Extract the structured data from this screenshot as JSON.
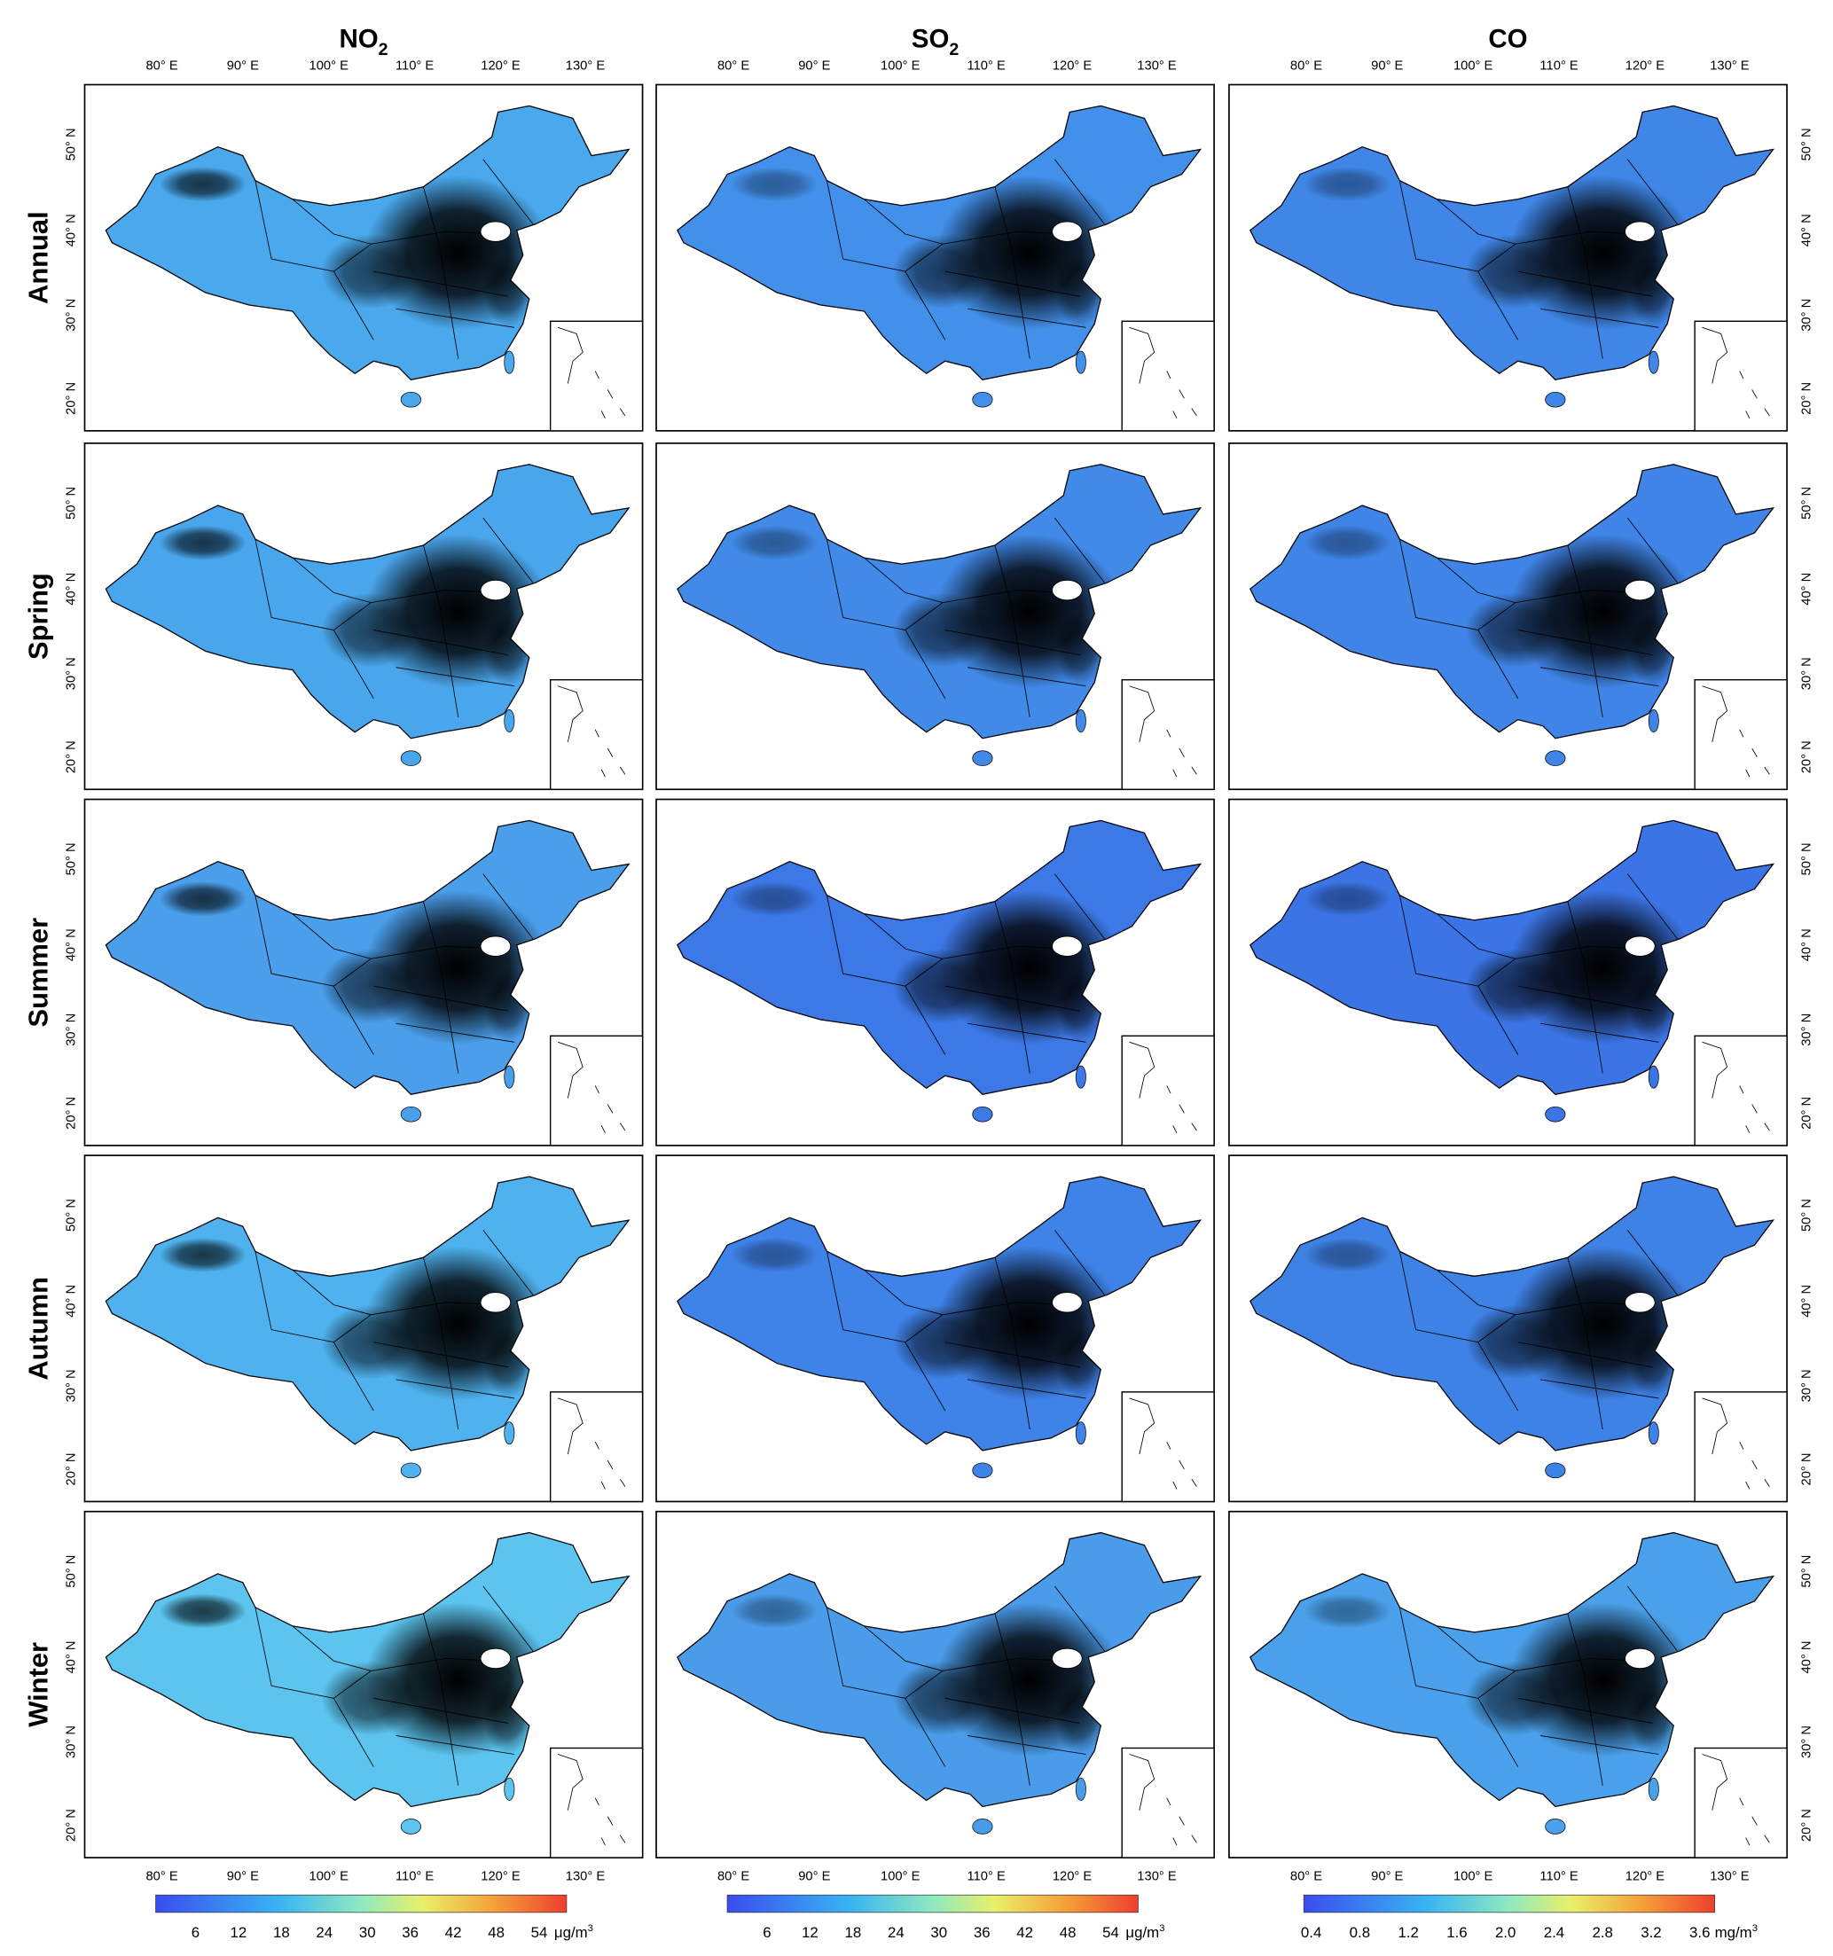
{
  "columns": [
    {
      "title": {
        "text": "NO",
        "sub": "2"
      },
      "colorbar": {
        "ticks": [
          "6",
          "12",
          "18",
          "24",
          "30",
          "36",
          "42",
          "48",
          "54"
        ],
        "unit": {
          "text": "μg/m",
          "sup": "3"
        }
      }
    },
    {
      "title": {
        "text": "SO",
        "sub": "2"
      },
      "colorbar": {
        "ticks": [
          "6",
          "12",
          "18",
          "24",
          "30",
          "36",
          "42",
          "48",
          "54"
        ],
        "unit": {
          "text": "μg/m",
          "sup": "3"
        }
      }
    },
    {
      "title": {
        "text": "CO"
      },
      "colorbar": {
        "ticks": [
          "0.4",
          "0.8",
          "1.2",
          "1.6",
          "2.0",
          "2.4",
          "2.8",
          "3.2",
          "3.6"
        ],
        "unit": {
          "text": "mg/m",
          "sup": "3"
        }
      }
    }
  ],
  "rows": [
    "Annual",
    "Spring",
    "Summer",
    "Autumn",
    "Winter"
  ],
  "longitude_ticks": [
    "80° E",
    "90° E",
    "100° E",
    "110° E",
    "120° E",
    "130° E"
  ],
  "latitude_ticks": [
    "50° N",
    "40° N",
    "30° N",
    "20° N"
  ]
}
